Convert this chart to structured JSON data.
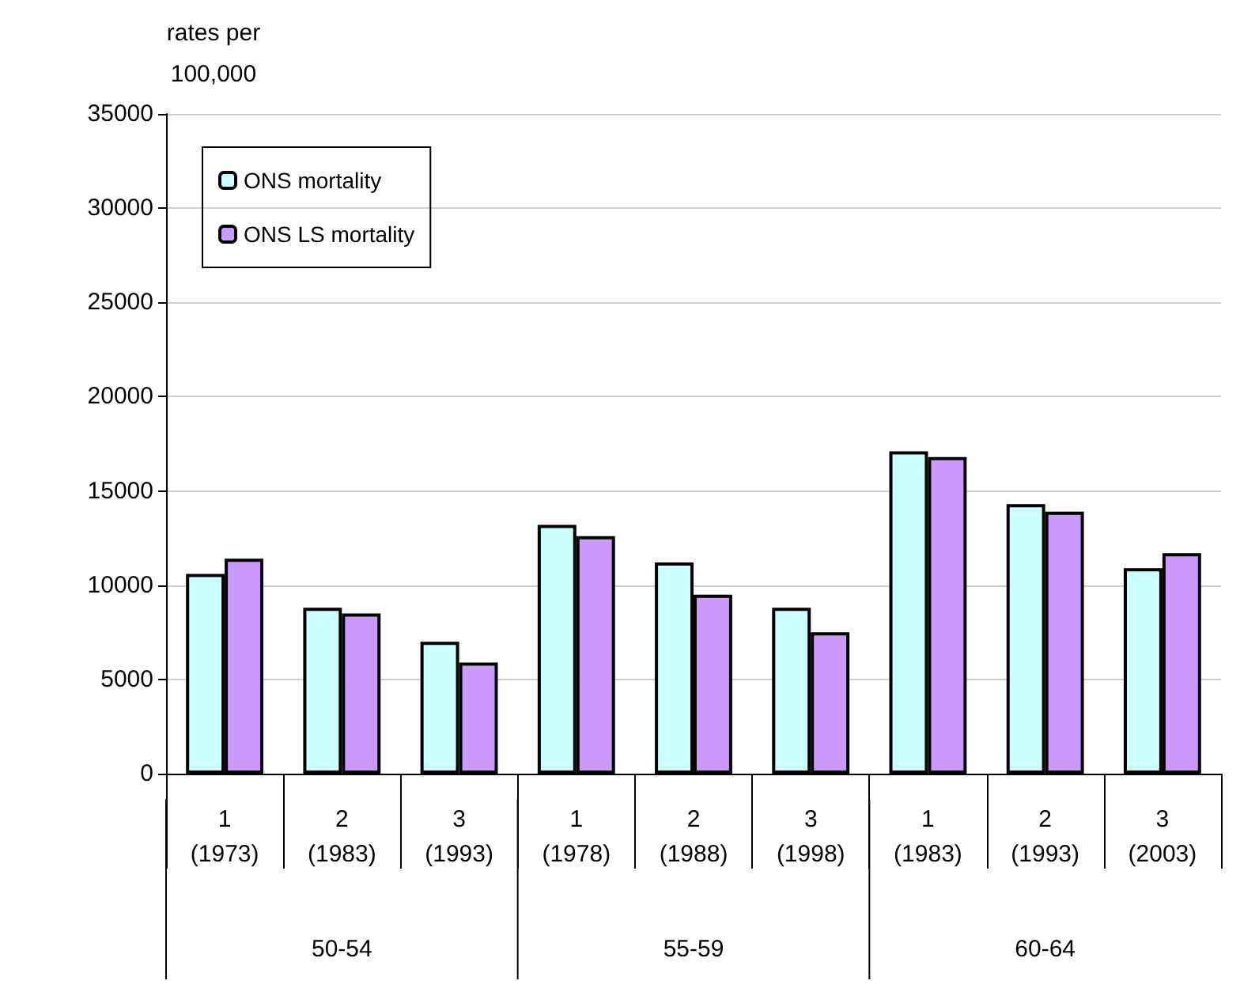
{
  "chart_data": {
    "type": "bar",
    "ylabel": "rates per\n100,000",
    "categories": [
      "1\n(1973)",
      "2\n(1983)",
      "3\n(1993)",
      "1\n(1978)",
      "2\n(1988)",
      "3\n(1998)",
      "1\n(1983)",
      "2\n(1993)",
      "3\n(2003)"
    ],
    "annotations": [
      "50-54",
      "55-59",
      "60-64"
    ],
    "series": [
      {
        "name": "ONS mortality",
        "color": "#ccffff",
        "values": [
          10600,
          8800,
          7000,
          13200,
          11200,
          8800,
          17100,
          14300,
          10900
        ]
      },
      {
        "name": "ONS LS mortality",
        "color": "#cc99ff",
        "values": [
          11400,
          8500,
          5900,
          12600,
          9500,
          7500,
          16800,
          13900,
          11700
        ]
      }
    ],
    "ylim": [
      0,
      35000
    ],
    "yticks": [
      0,
      5000,
      10000,
      15000,
      20000,
      25000,
      30000,
      35000
    ],
    "grid": "y",
    "legend": "top left"
  }
}
